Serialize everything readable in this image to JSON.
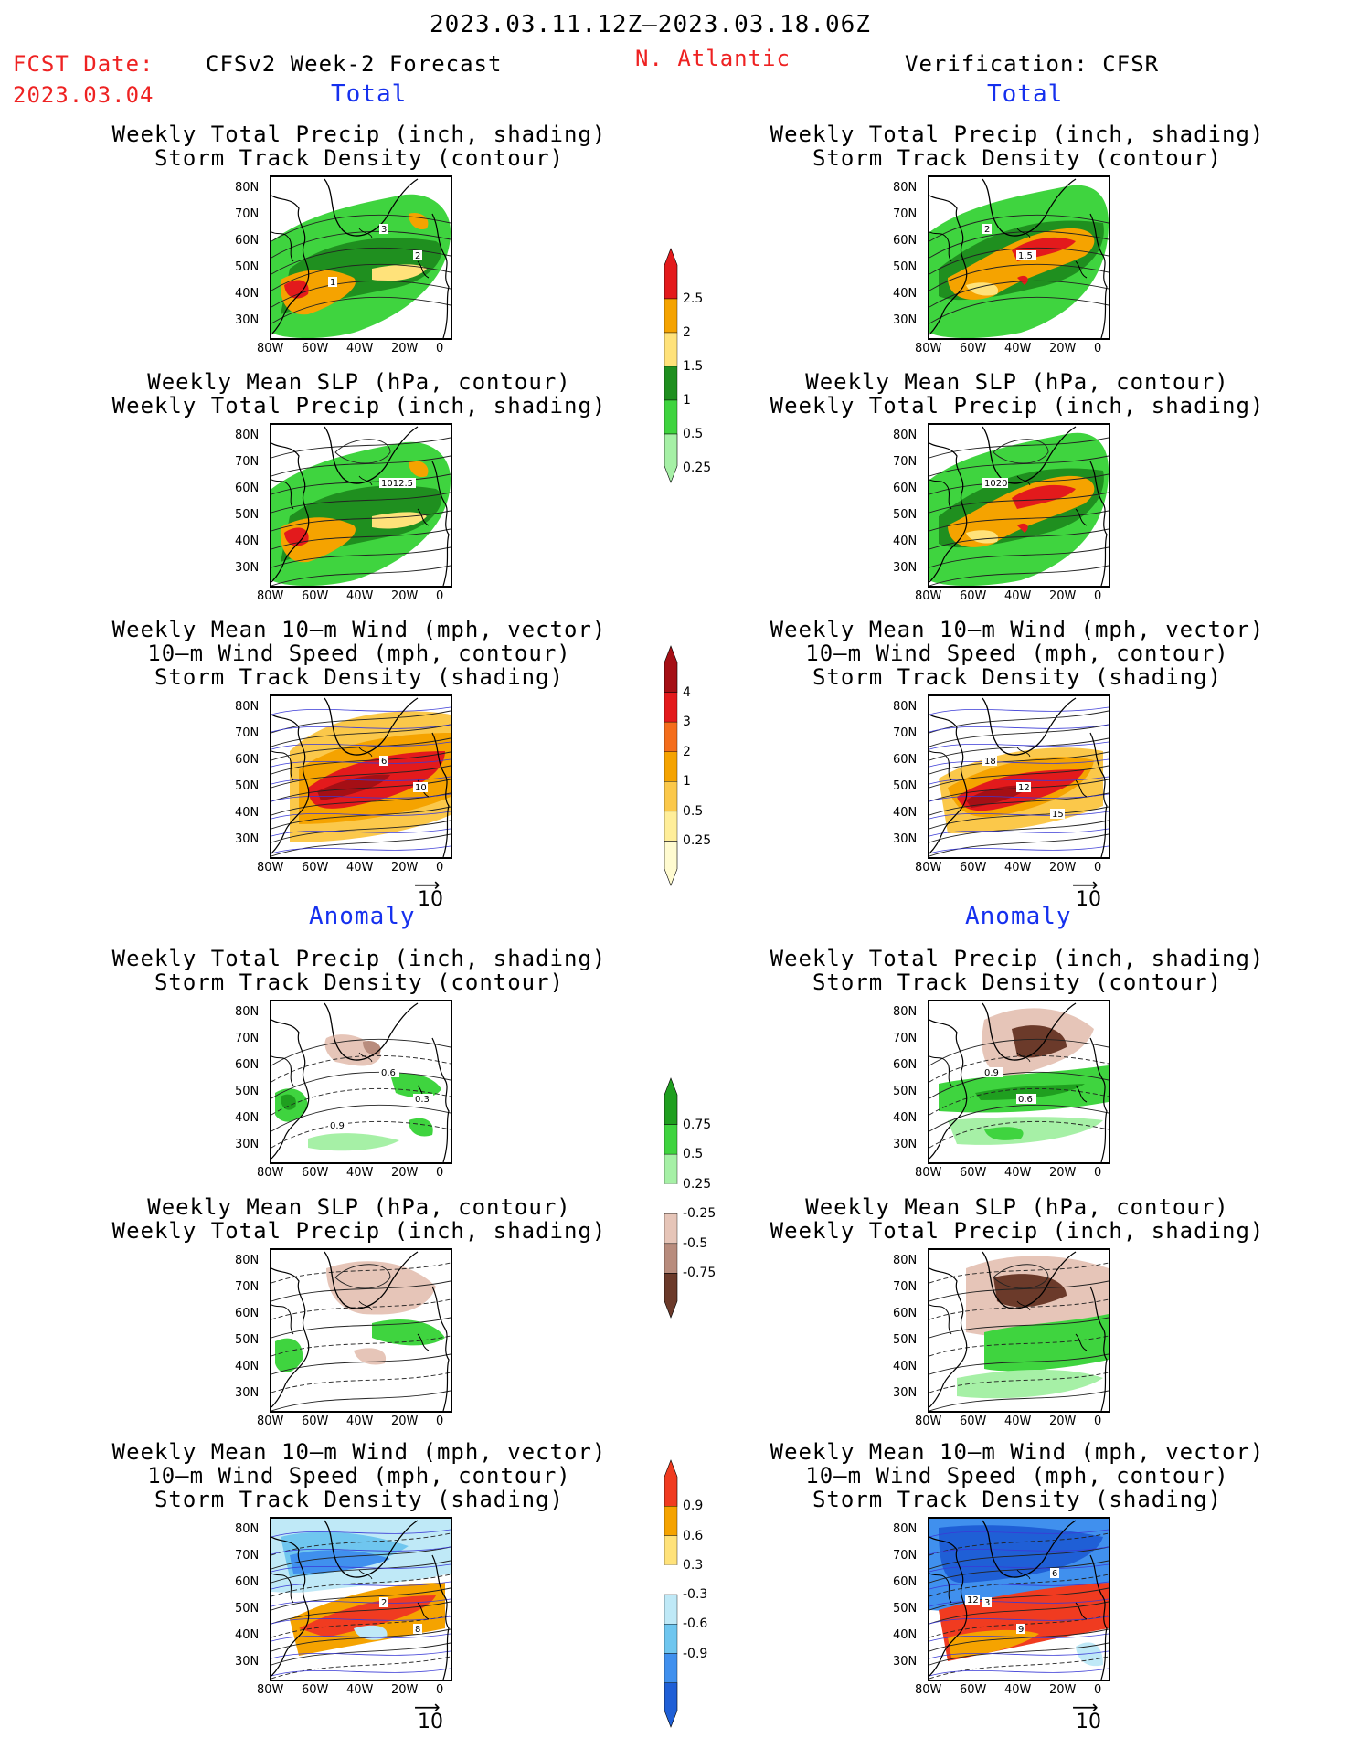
{
  "header": {
    "period": "2023.03.11.12Z–2023.03.18.06Z",
    "fcst_label": "FCST Date:",
    "fcst_date": "2023.03.04",
    "forecast_title": "CFSv2 Week-2 Forecast",
    "region": "N. Atlantic",
    "verification_title": "Verification: CFSR"
  },
  "sections": {
    "total": "Total",
    "anomaly": "Anomaly"
  },
  "panel_titles": {
    "precip_storm": [
      "Weekly Total Precip (inch, shading)",
      "Storm Track Density (contour)"
    ],
    "slp_precip": [
      "Weekly Mean SLP (hPa, contour)",
      "Weekly Total Precip (inch, shading)"
    ],
    "wind_storm": [
      "Weekly Mean 10–m Wind (mph, vector)",
      "10–m Wind Speed (mph, contour)",
      "Storm Track Density (shading)"
    ]
  },
  "axes": {
    "lat_ticks": [
      "80N",
      "70N",
      "60N",
      "50N",
      "40N",
      "30N"
    ],
    "lon_ticks": [
      "80W",
      "60W",
      "40W",
      "20W",
      "0"
    ],
    "vector_ref": "10"
  },
  "colorbars": {
    "precip_total": {
      "labels": [
        "2.5",
        "2",
        "1.5",
        "1",
        "0.5",
        "0.25"
      ],
      "colors": [
        "#e31a1c",
        "#f5a300",
        "#ffe27a",
        "#1f8f1f",
        "#3fd43f",
        "#a6f0a6"
      ]
    },
    "storm_total": {
      "labels": [
        "4",
        "3",
        "2",
        "1",
        "0.5",
        "0.25"
      ],
      "colors": [
        "#a50f15",
        "#e31a1c",
        "#f46d1b",
        "#f5a300",
        "#fbc84a",
        "#ffee99",
        "#fffbd0"
      ]
    },
    "precip_anom": {
      "labels": [
        "0.75",
        "0.5",
        "0.25",
        "-0.25",
        "-0.5",
        "-0.75"
      ],
      "colors": [
        "#1f9f1f",
        "#3fd43f",
        "#a6f0a6",
        "#ffffff",
        "#e6c5b8",
        "#b88c7d",
        "#6b3a2a"
      ]
    },
    "storm_anom": {
      "labels": [
        "0.9",
        "0.6",
        "0.3",
        "-0.3",
        "-0.6",
        "-0.9"
      ],
      "colors": [
        "#f03b20",
        "#f5a300",
        "#ffe27a",
        "#ffffff",
        "#bfe9f7",
        "#6fc6ef",
        "#4090ee",
        "#1f5fd6"
      ]
    }
  },
  "contour_labels": {
    "f_precip_storm": [
      "3",
      "2",
      "1"
    ],
    "v_precip_storm": [
      "2",
      "1.5"
    ],
    "f_slp": [
      "1012.5"
    ],
    "v_slp": [
      "1020"
    ],
    "f_wind": [
      "6",
      "10"
    ],
    "v_wind": [
      "18",
      "12",
      "15"
    ],
    "f_anom_precip": [
      "0.6",
      "0.3",
      "0.9"
    ],
    "v_anom_precip": [
      "0.9",
      "0.6"
    ],
    "f_anom_wind": [
      "2",
      "8"
    ],
    "v_anom_wind": [
      "3",
      "9",
      "6",
      "12"
    ]
  }
}
